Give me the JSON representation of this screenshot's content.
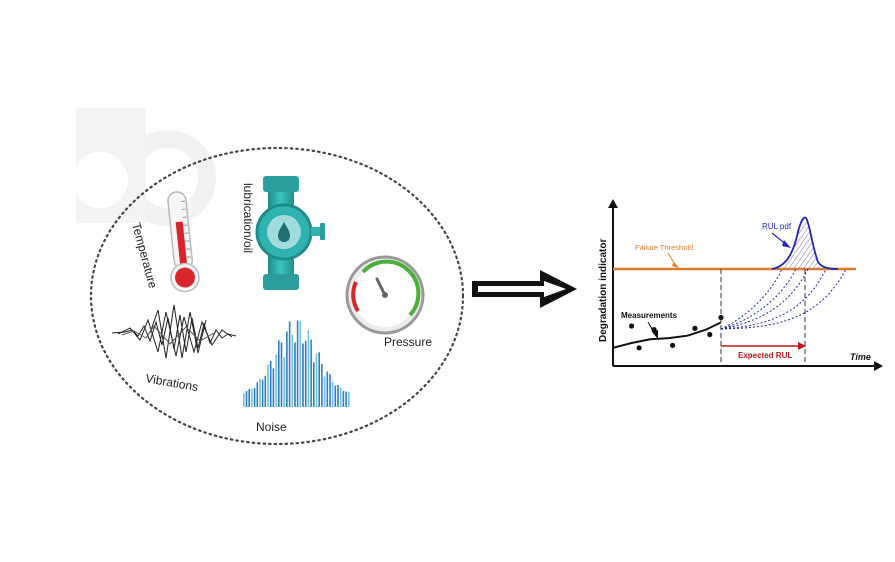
{
  "sensors": {
    "temperature": "Temperature",
    "lubrication": "lubrication/oil",
    "pressure": "Pressure",
    "vibrations": "Vibrations",
    "noise": "Noise"
  },
  "rul_chart": {
    "y_label": "Degradation indicator",
    "x_label": "Time",
    "threshold_label": "Failure Threshold",
    "pdf_label": "RUL pdf",
    "measurements_label": "Measurements",
    "expected_rul_label": "Expected RUL"
  },
  "colors": {
    "threshold": "#e07b2a",
    "pdf": "#1f2ab8",
    "expected_rul": "#c0161b",
    "pipe": "#2aa9a8",
    "thermometer_red": "#d6262c",
    "gauge_green": "#4caf3a",
    "noise_blue": "#2b7fc4"
  },
  "chart_data": {
    "type": "line",
    "measurements": [
      [
        10,
        33
      ],
      [
        14,
        15
      ],
      [
        22,
        30
      ],
      [
        32,
        17
      ],
      [
        44,
        31
      ],
      [
        52,
        26
      ],
      [
        58,
        40
      ]
    ],
    "threshold": 80,
    "fit_x": [
      0,
      10,
      20,
      30,
      40,
      50,
      58
    ],
    "fit_y": [
      15,
      19,
      22,
      23,
      25,
      30,
      36
    ]
  }
}
